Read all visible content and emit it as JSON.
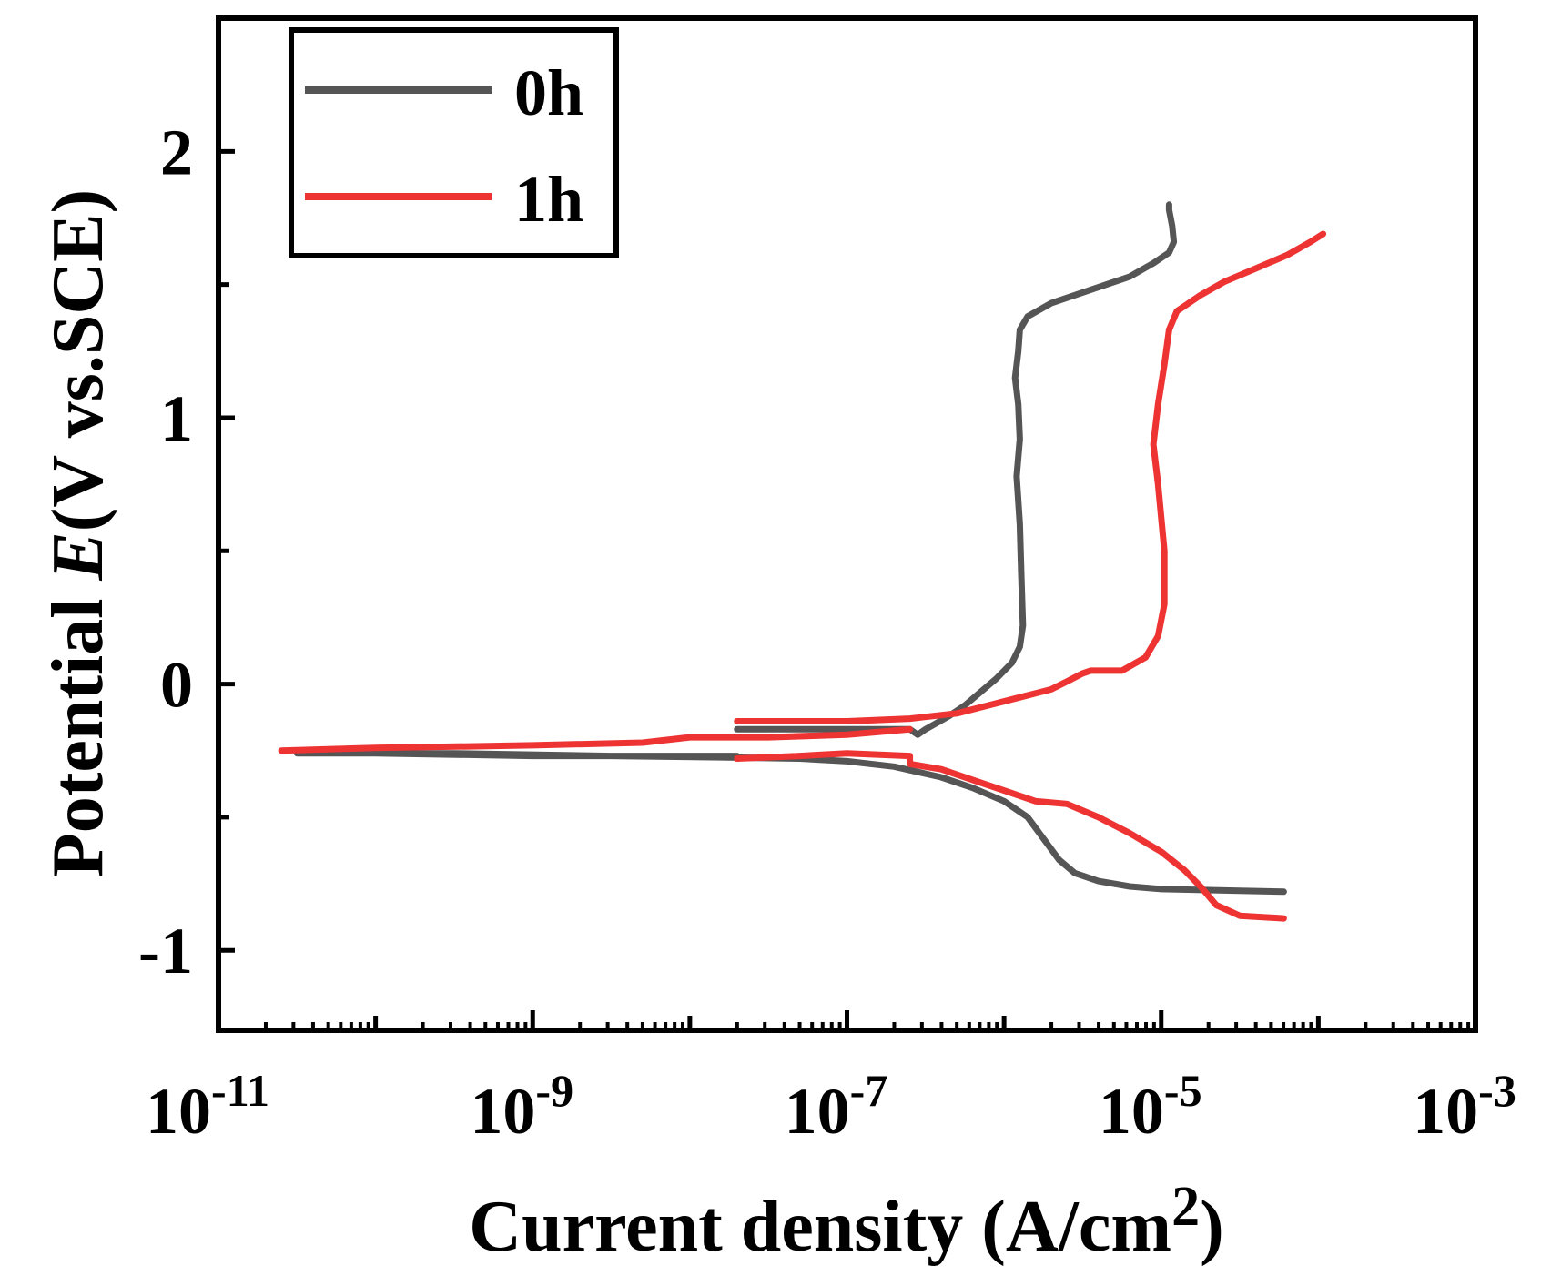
{
  "chart_data": {
    "type": "line",
    "title": "",
    "xlabel": "Current density (A/cm2)",
    "xlabel_parts": {
      "main": "Current density (A/cm",
      "sup": "2",
      "close": ")"
    },
    "ylabel": "Potential E(V vs.SCE)",
    "ylabel_parts": {
      "before": "Potential ",
      "italic": "E",
      "after": "(V vs.SCE)"
    },
    "x_scale": "log",
    "xlim_exponent": [
      -11,
      -3
    ],
    "ylim": [
      -1.3,
      2.5
    ],
    "x_ticks": [
      {
        "base": "10",
        "exp": "-11",
        "value": -11
      },
      {
        "base": "10",
        "exp": "-9",
        "value": -9
      },
      {
        "base": "10",
        "exp": "-7",
        "value": -7
      },
      {
        "base": "10",
        "exp": "-5",
        "value": -5
      },
      {
        "base": "10",
        "exp": "-3",
        "value": -3
      }
    ],
    "y_ticks": [
      {
        "label": "-1",
        "value": -1
      },
      {
        "label": "0",
        "value": 0
      },
      {
        "label": "1",
        "value": 1
      },
      {
        "label": "2",
        "value": 2
      }
    ],
    "legend_position": "top-left",
    "series": [
      {
        "name": "0h",
        "color": "#555555",
        "points": [
          [
            -7.7,
            -0.27
          ],
          [
            -8.2,
            -0.27
          ],
          [
            -9.0,
            -0.27
          ],
          [
            -10.0,
            -0.26
          ],
          [
            -10.5,
            -0.26
          ],
          [
            -9.5,
            -0.26
          ],
          [
            -8.5,
            -0.27
          ],
          [
            -7.8,
            -0.275
          ],
          [
            -7.3,
            -0.28
          ],
          [
            -7.0,
            -0.29
          ],
          [
            -6.7,
            -0.31
          ],
          [
            -6.4,
            -0.35
          ],
          [
            -6.2,
            -0.39
          ],
          [
            -6.0,
            -0.44
          ],
          [
            -5.85,
            -0.5
          ],
          [
            -5.75,
            -0.58
          ],
          [
            -5.65,
            -0.66
          ],
          [
            -5.55,
            -0.71
          ],
          [
            -5.4,
            -0.74
          ],
          [
            -5.2,
            -0.76
          ],
          [
            -5.0,
            -0.77
          ],
          [
            -4.6,
            -0.775
          ],
          [
            -4.22,
            -0.78
          ]
        ],
        "anodic": [
          [
            -7.7,
            -0.17
          ],
          [
            -7.0,
            -0.17
          ],
          [
            -6.6,
            -0.17
          ],
          [
            -6.55,
            -0.19
          ],
          [
            -6.5,
            -0.17
          ],
          [
            -6.35,
            -0.12
          ],
          [
            -6.25,
            -0.08
          ],
          [
            -6.15,
            -0.03
          ],
          [
            -6.05,
            0.02
          ],
          [
            -5.95,
            0.08
          ],
          [
            -5.9,
            0.14
          ],
          [
            -5.88,
            0.22
          ],
          [
            -5.89,
            0.4
          ],
          [
            -5.9,
            0.6
          ],
          [
            -5.92,
            0.78
          ],
          [
            -5.9,
            0.92
          ],
          [
            -5.91,
            1.05
          ],
          [
            -5.93,
            1.15
          ],
          [
            -5.91,
            1.25
          ],
          [
            -5.9,
            1.33
          ],
          [
            -5.85,
            1.38
          ],
          [
            -5.7,
            1.43
          ],
          [
            -5.4,
            1.49
          ],
          [
            -5.2,
            1.53
          ],
          [
            -5.05,
            1.58
          ],
          [
            -4.95,
            1.62
          ],
          [
            -4.92,
            1.66
          ],
          [
            -4.93,
            1.72
          ],
          [
            -4.95,
            1.78
          ],
          [
            -4.95,
            1.8
          ]
        ]
      },
      {
        "name": "1h",
        "color": "#ee3333",
        "points": [
          [
            -7.7,
            -0.28
          ],
          [
            -7.3,
            -0.27
          ],
          [
            -7.0,
            -0.26
          ],
          [
            -6.6,
            -0.27
          ],
          [
            -6.6,
            -0.3
          ],
          [
            -6.4,
            -0.32
          ],
          [
            -6.2,
            -0.36
          ],
          [
            -6.0,
            -0.4
          ],
          [
            -5.8,
            -0.44
          ],
          [
            -5.6,
            -0.45
          ],
          [
            -5.4,
            -0.5
          ],
          [
            -5.2,
            -0.56
          ],
          [
            -5.0,
            -0.63
          ],
          [
            -4.85,
            -0.7
          ],
          [
            -4.75,
            -0.76
          ],
          [
            -4.65,
            -0.83
          ],
          [
            -4.5,
            -0.87
          ],
          [
            -4.22,
            -0.88
          ]
        ],
        "anodic": [
          [
            -7.7,
            -0.14
          ],
          [
            -7.0,
            -0.14
          ],
          [
            -6.6,
            -0.13
          ],
          [
            -6.3,
            -0.11
          ],
          [
            -6.1,
            -0.08
          ],
          [
            -5.9,
            -0.05
          ],
          [
            -5.7,
            -0.02
          ],
          [
            -5.6,
            0.01
          ],
          [
            -5.5,
            0.04
          ],
          [
            -5.45,
            0.05
          ],
          [
            -5.25,
            0.05
          ],
          [
            -5.1,
            0.1
          ],
          [
            -5.02,
            0.18
          ],
          [
            -4.98,
            0.3
          ],
          [
            -4.98,
            0.5
          ],
          [
            -5.02,
            0.75
          ],
          [
            -5.05,
            0.9
          ],
          [
            -5.02,
            1.05
          ],
          [
            -4.98,
            1.2
          ],
          [
            -4.95,
            1.33
          ],
          [
            -4.9,
            1.4
          ],
          [
            -4.75,
            1.46
          ],
          [
            -4.6,
            1.51
          ],
          [
            -4.4,
            1.56
          ],
          [
            -4.2,
            1.61
          ],
          [
            -4.05,
            1.66
          ],
          [
            -3.97,
            1.69
          ]
        ],
        "extra_branch": [
          [
            -10.6,
            -0.25
          ],
          [
            -10.0,
            -0.24
          ],
          [
            -9.0,
            -0.23
          ],
          [
            -8.3,
            -0.22
          ],
          [
            -8.0,
            -0.2
          ],
          [
            -7.5,
            -0.2
          ],
          [
            -7.0,
            -0.19
          ],
          [
            -6.8,
            -0.18
          ],
          [
            -6.6,
            -0.17
          ]
        ]
      }
    ]
  }
}
